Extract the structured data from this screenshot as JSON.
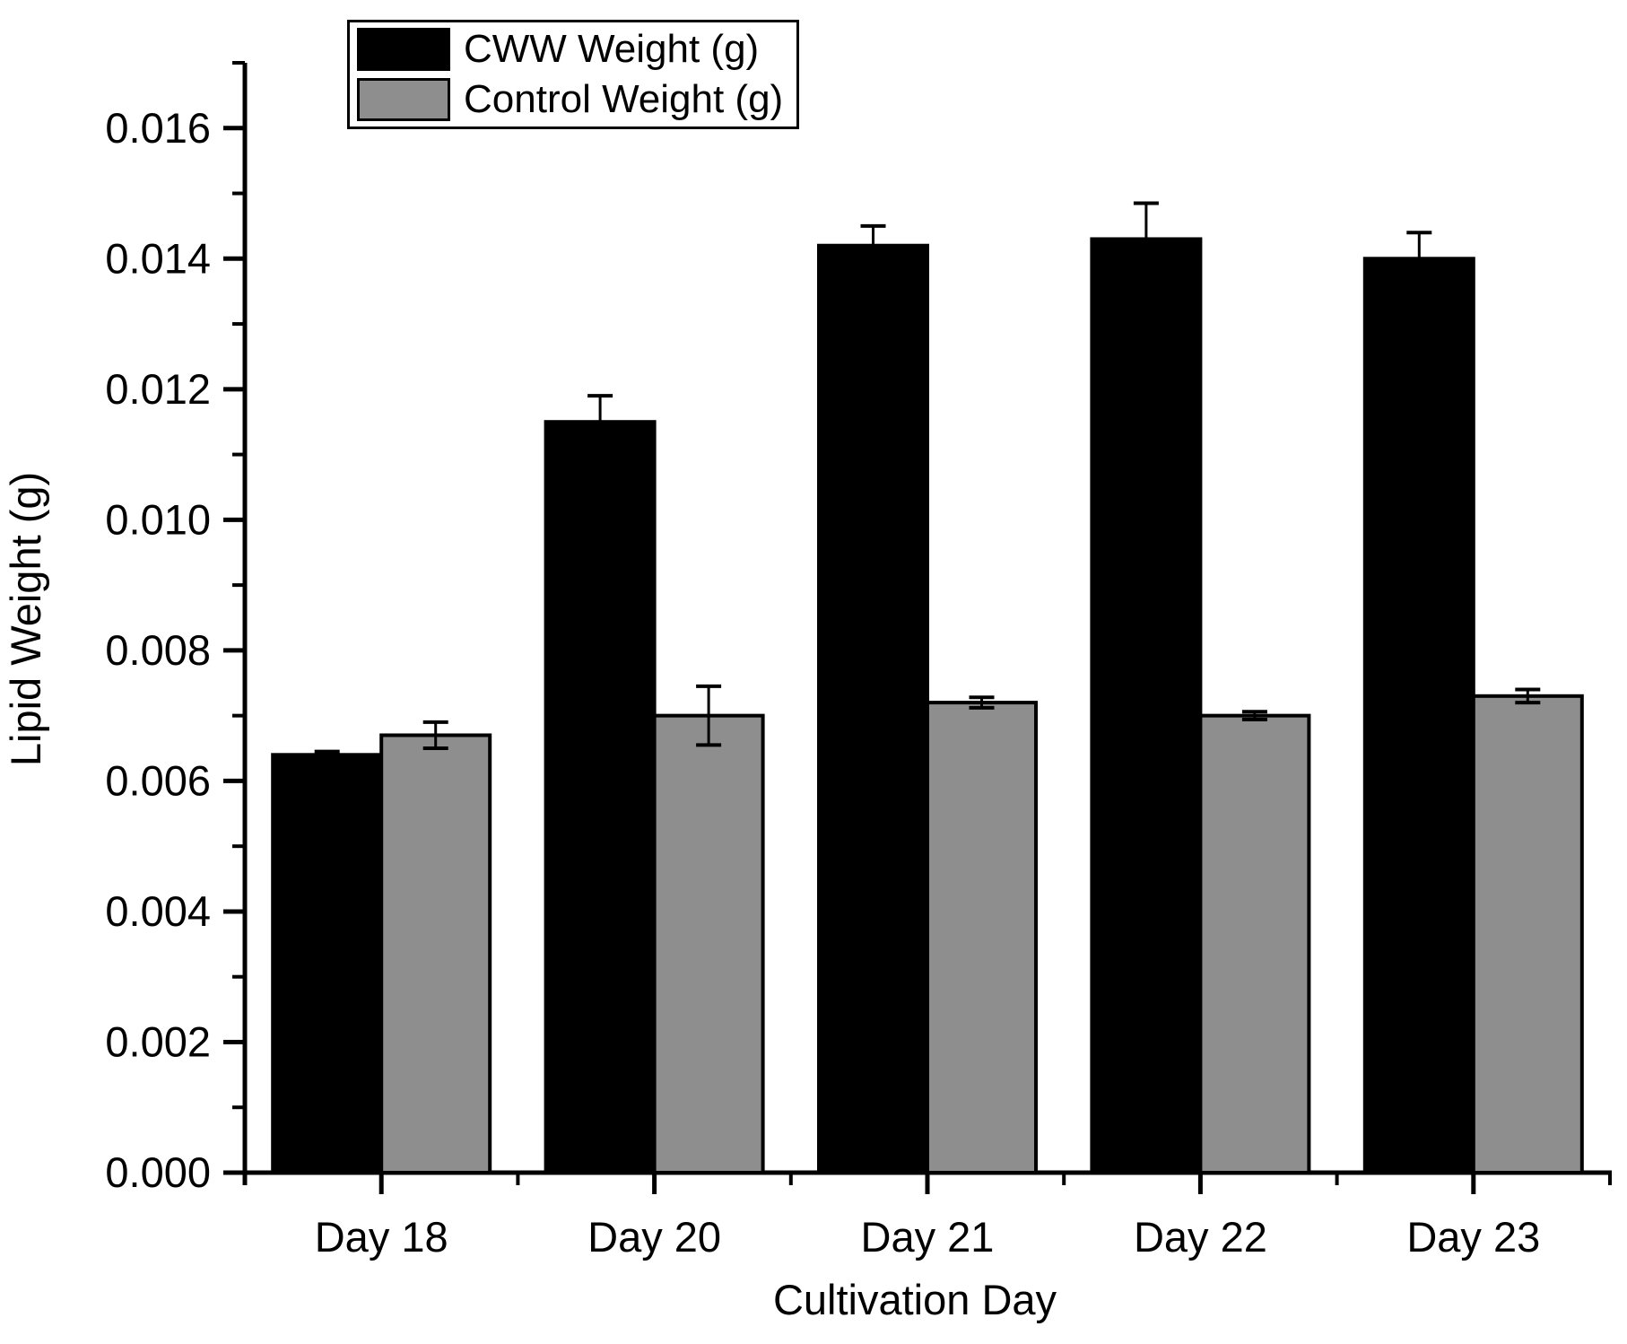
{
  "chart_data": {
    "type": "bar",
    "title": "",
    "xlabel": "Cultivation Day",
    "ylabel": "Lipid Weight (g)",
    "categories": [
      "Day 18",
      "Day 20",
      "Day 21",
      "Day 22",
      "Day 23"
    ],
    "series": [
      {
        "name": "CWW Weight (g)",
        "color": "#000000",
        "values": [
          0.0064,
          0.0115,
          0.0142,
          0.0143,
          0.014
        ],
        "errors": [
          5e-05,
          0.0004,
          0.0003,
          0.00055,
          0.0004
        ]
      },
      {
        "name": "Control Weight (g)",
        "color": "#8e8e8e",
        "values": [
          0.0067,
          0.007,
          0.0072,
          0.007,
          0.0073
        ],
        "errors": [
          0.0002,
          0.00045,
          8e-05,
          6e-05,
          0.0001
        ]
      }
    ],
    "ylim": [
      0,
      0.017
    ],
    "y_major_tick_step": 0.002,
    "y_minor_tick_step": 0.001,
    "y_tick_labels": [
      "0.000",
      "0.002",
      "0.004",
      "0.006",
      "0.008",
      "0.010",
      "0.012",
      "0.014",
      "0.016"
    ],
    "legend_position": "top-left-inside",
    "grid": false
  }
}
